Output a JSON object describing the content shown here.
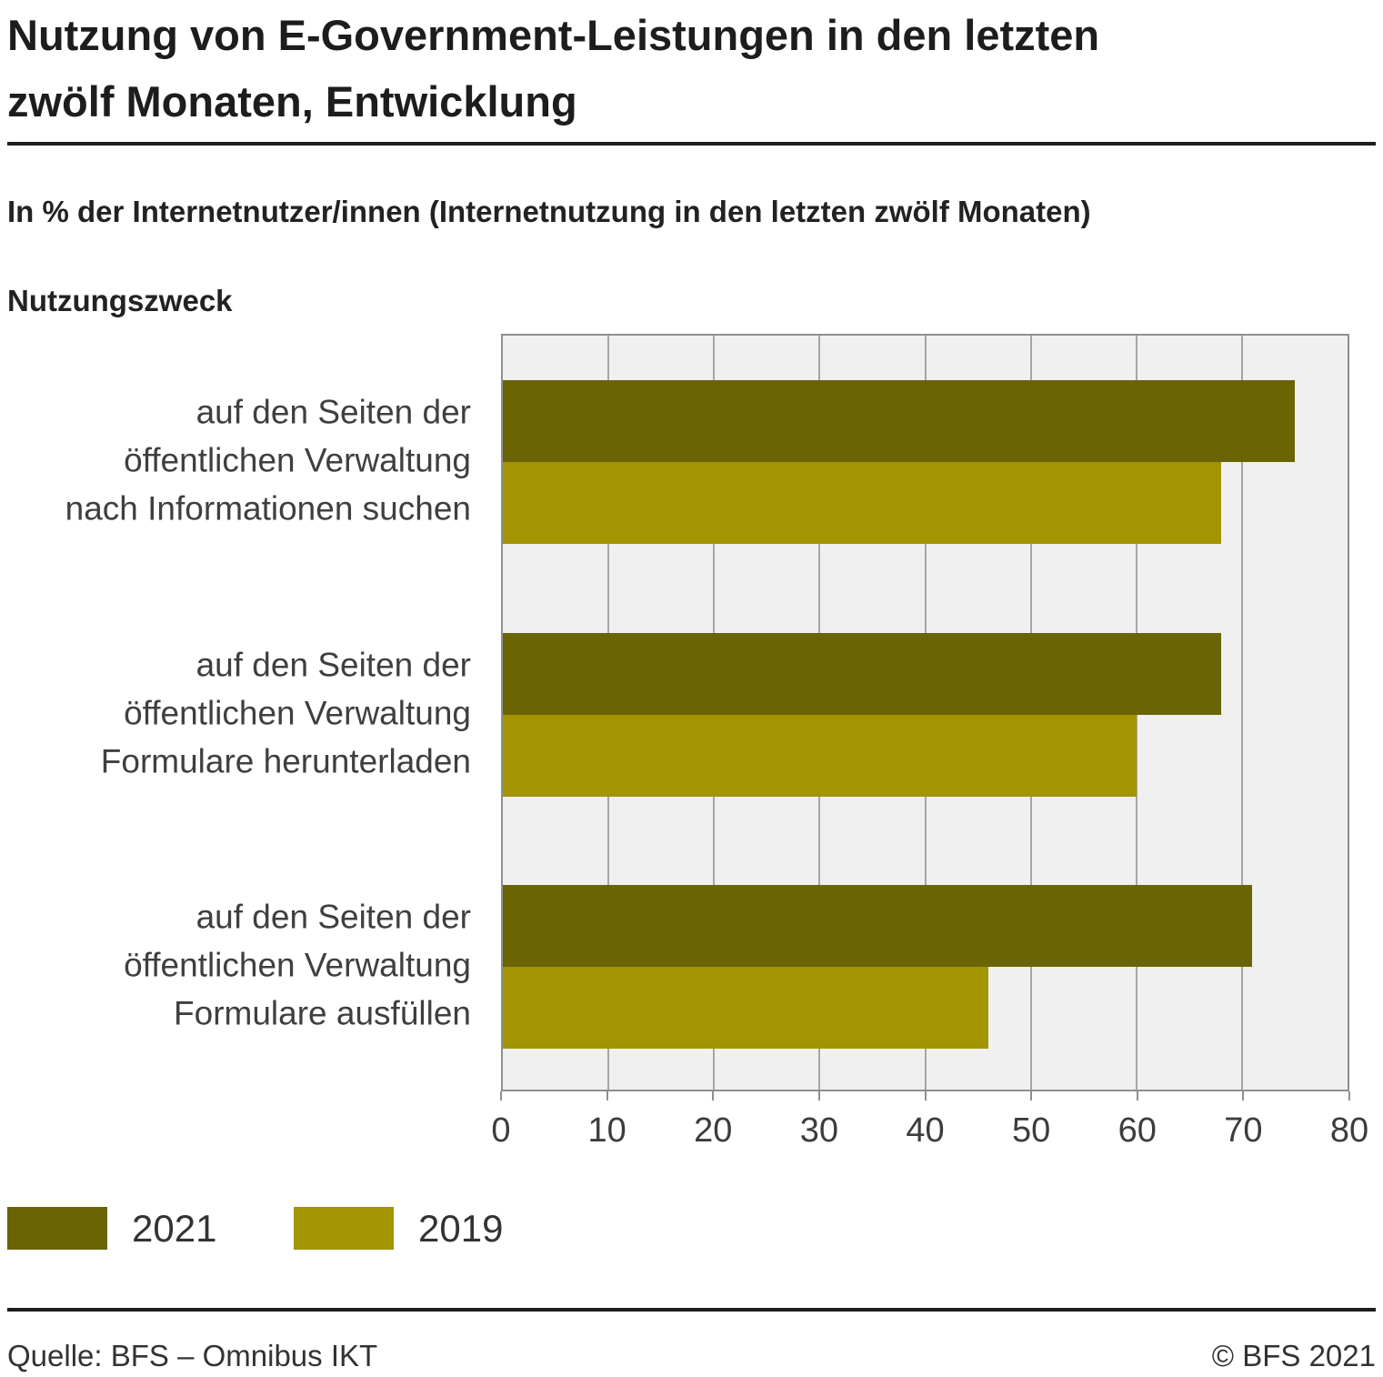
{
  "title": {
    "line1": "Nutzung von E-Government-Leistungen in den letzten",
    "line2": "zwölf Monaten, Entwicklung"
  },
  "subtitle": "In % der Internetnutzer/innen (Internetnutzung in den letzten zwölf Monaten)",
  "axis_heading": "Nutzungszweck",
  "chart_data": {
    "type": "bar",
    "orientation": "horizontal",
    "categories": [
      [
        "auf den Seiten der",
        "öffentlichen Verwaltung",
        "nach Informationen suchen"
      ],
      [
        "auf den Seiten der",
        "öffentlichen Verwaltung",
        "Formulare herunterladen"
      ],
      [
        "auf den Seiten der",
        "öffentlichen Verwaltung",
        "Formulare ausfüllen"
      ]
    ],
    "series": [
      {
        "name": "2021",
        "color": "#6a6405",
        "values": [
          75,
          68,
          71
        ]
      },
      {
        "name": "2019",
        "color": "#a39404",
        "values": [
          68,
          60,
          46
        ]
      }
    ],
    "xlim": [
      0,
      80
    ],
    "xticks": [
      0,
      10,
      20,
      30,
      40,
      50,
      60,
      70,
      80
    ],
    "grid": true,
    "plot_background": "#f0f0f0",
    "gridline_color": "#a6a6a6",
    "legend_position": "bottom-left"
  },
  "legend": {
    "items": [
      {
        "label": "2021",
        "color": "#6a6405"
      },
      {
        "label": "2019",
        "color": "#a39404"
      }
    ]
  },
  "footer": {
    "source": "Quelle: BFS – Omnibus IKT",
    "copyright": "© BFS 2021"
  }
}
